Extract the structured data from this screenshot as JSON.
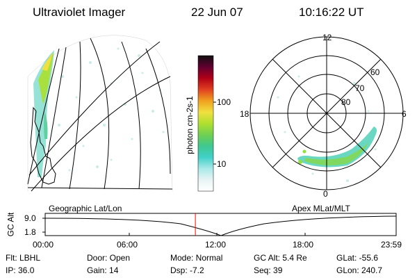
{
  "header": {
    "title": "Ultraviolet Imager",
    "date": "22 Jun 07",
    "time": "10:16:22 UT"
  },
  "colorbar": {
    "label": "photon cm-2s-1",
    "ticks": [
      "100",
      "10"
    ],
    "colors": [
      "#ffffff",
      "#e8f4f4",
      "#a8e8e8",
      "#40d0c8",
      "#40c890",
      "#70d050",
      "#b0e030",
      "#f0e040",
      "#f0a020",
      "#e04020",
      "#b00018",
      "#600030",
      "#101010"
    ]
  },
  "left_map": {
    "label": "Geographic Lat/Lon"
  },
  "polar_plot": {
    "label": "Apex MLat/MLT",
    "mlt_labels": {
      "top": "12",
      "left": "18",
      "right": "6",
      "bottom": "0"
    },
    "lat_labels": [
      "60",
      "70",
      "80"
    ]
  },
  "altitude_strip": {
    "axis_label": "GC Alt",
    "ticks": [
      "9.0",
      "1.8"
    ],
    "time_labels": [
      "00:00",
      "06:00",
      "12:00",
      "18:00",
      "23:59"
    ],
    "current_marker_hours": 10.27,
    "marker_color": "#ff0000"
  },
  "info": {
    "flt": "Flt: LBHL",
    "ip": "IP: 36.0",
    "door": "Door: Open",
    "gain": "Gain: 14",
    "mode": "Mode: Normal",
    "dsp": "Dsp:    -7.2",
    "gcalt": "GC Alt: 5.4 Re",
    "seq": "Seq: 39",
    "glat": "GLat: -55.6",
    "glon": "GLon: 240.7"
  }
}
